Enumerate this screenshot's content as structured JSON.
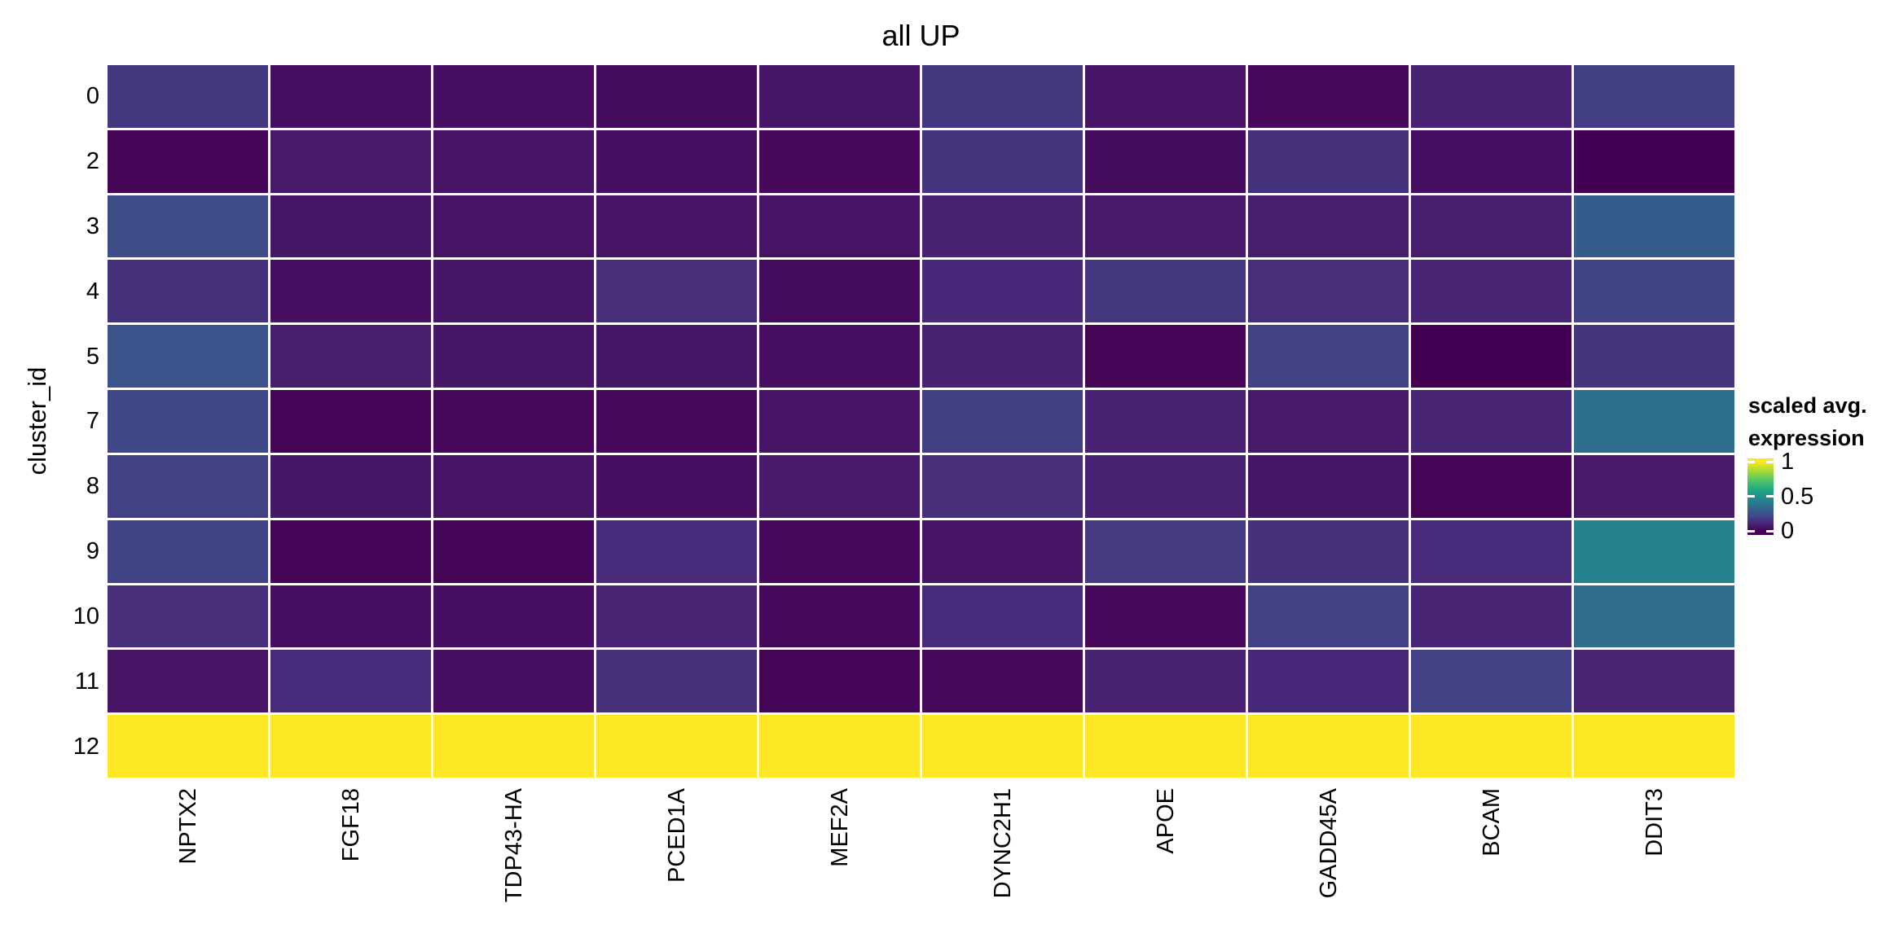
{
  "page": {
    "background": "#FFFFFF"
  },
  "chart_data": {
    "type": "heatmap",
    "title": "all UP",
    "xlabel": "",
    "ylabel": "cluster_id",
    "columns": [
      "NPTX2",
      "FGF18",
      "TDP43-HA",
      "PCED1A",
      "MEF2A",
      "DYNC2H1",
      "APOE",
      "GADD45A",
      "BCAM",
      "DDIT3"
    ],
    "rows": [
      "0",
      "2",
      "3",
      "4",
      "5",
      "7",
      "8",
      "9",
      "10",
      "11",
      "12"
    ],
    "values": [
      [
        0.16,
        0.04,
        0.04,
        0.03,
        0.06,
        0.16,
        0.05,
        0.02,
        0.09,
        0.18
      ],
      [
        0.01,
        0.07,
        0.05,
        0.04,
        0.02,
        0.15,
        0.03,
        0.14,
        0.04,
        0.0
      ],
      [
        0.23,
        0.06,
        0.05,
        0.05,
        0.05,
        0.09,
        0.07,
        0.08,
        0.08,
        0.29
      ],
      [
        0.14,
        0.04,
        0.06,
        0.13,
        0.03,
        0.11,
        0.16,
        0.13,
        0.1,
        0.2
      ],
      [
        0.25,
        0.08,
        0.06,
        0.06,
        0.04,
        0.09,
        0.01,
        0.19,
        0.0,
        0.15
      ],
      [
        0.21,
        0.01,
        0.02,
        0.02,
        0.05,
        0.18,
        0.09,
        0.07,
        0.1,
        0.36
      ],
      [
        0.19,
        0.06,
        0.05,
        0.04,
        0.07,
        0.13,
        0.09,
        0.06,
        0.01,
        0.07
      ],
      [
        0.2,
        0.01,
        0.01,
        0.12,
        0.02,
        0.05,
        0.17,
        0.14,
        0.12,
        0.44
      ],
      [
        0.13,
        0.04,
        0.04,
        0.1,
        0.02,
        0.12,
        0.02,
        0.19,
        0.1,
        0.35
      ],
      [
        0.05,
        0.12,
        0.04,
        0.14,
        0.01,
        0.02,
        0.09,
        0.11,
        0.19,
        0.1
      ],
      [
        1.0,
        1.0,
        1.0,
        1.0,
        1.0,
        1.0,
        1.0,
        1.0,
        1.0,
        1.0
      ]
    ],
    "value_range": [
      0,
      1
    ],
    "grid_line_color": "#FFFFFF",
    "layout": {
      "x_tick_rotation": 90,
      "legend_position": "right",
      "grid": "off"
    },
    "legend": {
      "title_line1": "scaled avg.",
      "title_line2": "expression",
      "ticks": [
        {
          "label": "1",
          "value": 1
        },
        {
          "label": "0.5",
          "value": 0.5
        },
        {
          "label": "0",
          "value": 0
        }
      ]
    },
    "colormap": {
      "name": "viridis",
      "stops": [
        "#440154",
        "#482475",
        "#414487",
        "#355F8D",
        "#2A788E",
        "#21918C",
        "#22A884",
        "#44BF70",
        "#7AD151",
        "#BDDF26",
        "#FDE725"
      ]
    }
  }
}
